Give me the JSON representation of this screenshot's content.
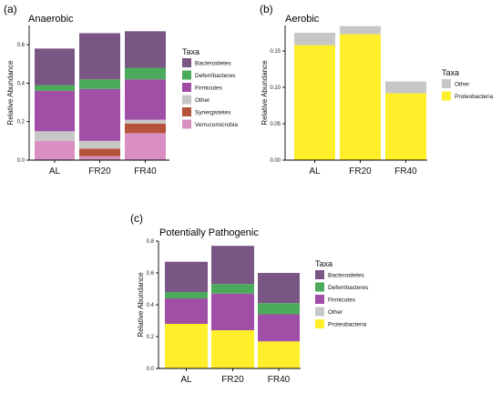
{
  "chart_data": [
    {
      "panel": "(a)",
      "title": "Anaerobic",
      "type": "bar",
      "stacked": true,
      "categories": [
        "AL",
        "FR20",
        "FR40"
      ],
      "ylabel": "Relative Abundance",
      "ylim": [
        0,
        0.7
      ],
      "yticks": [
        "0.0",
        "0.2",
        "0.4",
        "0.6"
      ],
      "legend_title": "Taxa",
      "legend_position": "right",
      "series": [
        {
          "name": "Verrucomicrobia",
          "color": "#d98fc2",
          "values": [
            0.1,
            0.02,
            0.14
          ]
        },
        {
          "name": "Synergistetes",
          "color": "#b5523a",
          "values": [
            0.0,
            0.04,
            0.05
          ]
        },
        {
          "name": "Other",
          "color": "#c7c7c7",
          "values": [
            0.05,
            0.04,
            0.02
          ]
        },
        {
          "name": "Firmicutes",
          "color": "#a04ea6",
          "values": [
            0.21,
            0.27,
            0.21
          ]
        },
        {
          "name": "Deferribacteres",
          "color": "#4caa5c",
          "values": [
            0.03,
            0.05,
            0.06
          ]
        },
        {
          "name": "Bacteroidetes",
          "color": "#7a5684",
          "values": [
            0.19,
            0.24,
            0.19
          ]
        }
      ],
      "legend_order": [
        "Bacteroidetes",
        "Deferribacteres",
        "Firmicutes",
        "Other",
        "Synergistetes",
        "Verrucomicrobia"
      ]
    },
    {
      "panel": "(b)",
      "title": "Aerobic",
      "type": "bar",
      "stacked": true,
      "categories": [
        "AL",
        "FR20",
        "FR40"
      ],
      "ylabel": "Relative Abundance",
      "ylim": [
        0,
        0.185
      ],
      "yticks": [
        "0.00",
        "0.05",
        "0.10",
        "0.15"
      ],
      "legend_title": "Taxa",
      "legend_position": "right",
      "series": [
        {
          "name": "Proteobacteria",
          "color": "#ffee2a",
          "values": [
            0.158,
            0.173,
            0.092
          ]
        },
        {
          "name": "Other",
          "color": "#c7c7c7",
          "values": [
            0.017,
            0.011,
            0.016
          ]
        }
      ],
      "legend_order": [
        "Other",
        "Proteobacteria"
      ]
    },
    {
      "panel": "(c)",
      "title": "Potentially Pathogenic",
      "type": "bar",
      "stacked": true,
      "categories": [
        "AL",
        "FR20",
        "FR40"
      ],
      "ylabel": "Relative Abundance",
      "ylim": [
        0,
        0.8
      ],
      "yticks": [
        "0.0",
        "0.2",
        "0.4",
        "0.6",
        "0.8"
      ],
      "legend_title": "Taxa",
      "legend_position": "right",
      "series": [
        {
          "name": "Proteobacteria",
          "color": "#ffee2a",
          "values": [
            0.28,
            0.24,
            0.17
          ]
        },
        {
          "name": "Other",
          "color": "#c7c7c7",
          "values": [
            0.0,
            0.0,
            0.0
          ]
        },
        {
          "name": "Firmicutes",
          "color": "#a04ea6",
          "values": [
            0.16,
            0.23,
            0.17
          ]
        },
        {
          "name": "Deferribacteres",
          "color": "#4caa5c",
          "values": [
            0.04,
            0.06,
            0.07
          ]
        },
        {
          "name": "Bacteroidetes",
          "color": "#7a5684",
          "values": [
            0.19,
            0.24,
            0.19
          ]
        }
      ],
      "legend_order": [
        "Bacteroidetes",
        "Deferribacteres",
        "Firmicutes",
        "Other",
        "Proteobacteria"
      ]
    }
  ]
}
